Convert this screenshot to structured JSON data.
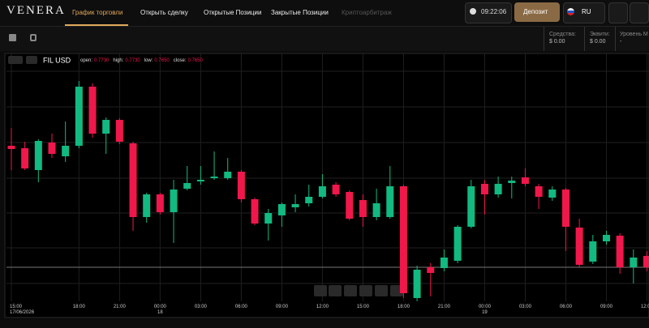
{
  "header": {
    "logo": "VENERA",
    "nav": [
      "График торговли",
      "Открыть сделку",
      "Открытые Позиции",
      "Закрытые Позиции",
      "Криптоарбитраж"
    ],
    "clock": "09:22:06",
    "deposit": "Депозит",
    "language": "RU"
  },
  "account": [
    {
      "label": "Средства:",
      "value": "$ 0.00"
    },
    {
      "label": "Эквити:",
      "value": "$ 0.00"
    },
    {
      "label": "Уровень М",
      "value": "-"
    }
  ],
  "chart_bar": {
    "symbol": "FIL USD",
    "ohlc": [
      {
        "label": "open:",
        "value": "0.7730"
      },
      {
        "label": "high:",
        "value": "0.7730"
      },
      {
        "label": "low:",
        "value": "0.7650"
      },
      {
        "label": "close:",
        "value": "0.7650"
      }
    ]
  },
  "chart_data": {
    "type": "candlestick",
    "up_color": "#12b981",
    "down_color": "#f0174b",
    "ylim": [
      0.76285,
      0.7776
    ],
    "categories": [
      "15:00",
      null,
      null,
      null,
      null,
      "18:00",
      null,
      null,
      "21:00",
      null,
      null,
      "00:00",
      null,
      null,
      "03:00",
      null,
      null,
      "06:00",
      null,
      null,
      "09:00",
      null,
      null,
      "12:00",
      null,
      null,
      "15:00",
      null,
      null,
      "18:00",
      null,
      null,
      "21:00",
      null,
      null,
      "00:00",
      null,
      null,
      "03:00",
      null,
      null,
      "06:00",
      null,
      null,
      "09:00",
      null,
      null,
      "12:00"
    ],
    "sublabels": [
      "17/06/2026",
      null,
      null,
      null,
      null,
      null,
      null,
      null,
      null,
      null,
      null,
      "18",
      null,
      null,
      null,
      null,
      null,
      null,
      null,
      null,
      null,
      null,
      null,
      null,
      null,
      null,
      null,
      null,
      null,
      null,
      null,
      null,
      null,
      null,
      null,
      "19",
      null,
      null,
      null,
      null,
      null,
      null,
      null,
      null,
      null,
      null,
      null,
      null
    ],
    "open": [
      0.77235,
      0.7722,
      0.77085,
      0.77255,
      0.7717,
      0.77235,
      0.776,
      0.7731,
      0.77395,
      0.7725,
      0.76795,
      0.76935,
      0.76825,
      0.7697,
      0.77015,
      0.77035,
      0.77035,
      0.77075,
      0.76905,
      0.76755,
      0.76805,
      0.76855,
      0.7688,
      0.7692,
      0.76995,
      0.7695,
      0.769,
      0.76795,
      0.76795,
      0.76985,
      0.76295,
      0.76485,
      0.7648,
      0.76525,
      0.76735,
      0.77,
      0.76935,
      0.77005,
      0.7704,
      0.76985,
      0.76915,
      0.76965,
      0.7673,
      0.7652,
      0.76645,
      0.7668,
      0.76485,
      0.76555
    ],
    "close": [
      0.77215,
      0.77095,
      0.77265,
      0.77185,
      0.77235,
      0.776,
      0.7731,
      0.77395,
      0.7726,
      0.76795,
      0.76935,
      0.76825,
      0.76965,
      0.77005,
      0.77025,
      0.77045,
      0.77075,
      0.76905,
      0.76755,
      0.7682,
      0.76875,
      0.76875,
      0.7692,
      0.76985,
      0.76935,
      0.76785,
      0.76795,
      0.7688,
      0.76985,
      0.76325,
      0.7647,
      0.7645,
      0.76545,
      0.76735,
      0.76985,
      0.76935,
      0.77,
      0.7702,
      0.77,
      0.7692,
      0.76965,
      0.76735,
      0.765,
      0.76645,
      0.76685,
      0.76485,
      0.76545,
      0.76485
    ],
    "high": [
      0.77345,
      0.7726,
      0.77275,
      0.7731,
      0.77385,
      0.77635,
      0.7762,
      0.7741,
      0.77405,
      0.7726,
      0.76945,
      0.76945,
      0.77025,
      0.7711,
      0.7711,
      0.772,
      0.7716,
      0.77085,
      0.76915,
      0.76845,
      0.76885,
      0.76935,
      0.76995,
      0.7706,
      0.7701,
      0.7696,
      0.76935,
      0.7697,
      0.7711,
      0.76995,
      0.76495,
      0.7651,
      0.76595,
      0.76745,
      0.77025,
      0.77025,
      0.77045,
      0.77045,
      0.77095,
      0.77,
      0.76985,
      0.76975,
      0.76785,
      0.76685,
      0.7671,
      0.76695,
      0.76595,
      0.76585
    ],
    "low": [
      0.77085,
      0.77085,
      0.7701,
      0.7716,
      0.77135,
      0.7722,
      0.77285,
      0.77185,
      0.77245,
      0.7671,
      0.7676,
      0.7681,
      0.76635,
      0.7696,
      0.76995,
      0.77025,
      0.77025,
      0.76885,
      0.76745,
      0.7665,
      0.76735,
      0.76825,
      0.7686,
      0.7691,
      0.7692,
      0.76775,
      0.76735,
      0.76775,
      0.76785,
      0.76295,
      0.76275,
      0.76305,
      0.7646,
      0.7651,
      0.76725,
      0.7681,
      0.76915,
      0.7691,
      0.76985,
      0.76845,
      0.76895,
      0.76585,
      0.76485,
      0.76505,
      0.76625,
      0.76445,
      0.76385,
      0.7646
    ]
  }
}
